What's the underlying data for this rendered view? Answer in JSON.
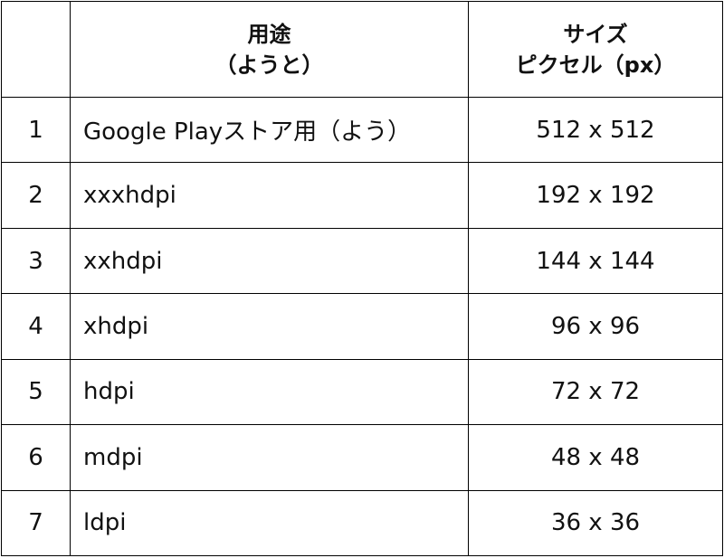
{
  "header": {
    "number": "",
    "use_line1": "用途",
    "use_line2": "（ようと）",
    "size_line1": "サイズ",
    "size_line2": "ピクセル（px）"
  },
  "rows": [
    {
      "number": "1",
      "use": "Google Playストア用（よう）",
      "size": "512 x 512"
    },
    {
      "number": "2",
      "use": "xxxhdpi",
      "size": "192 x 192"
    },
    {
      "number": "3",
      "use": "xxhdpi",
      "size": "144 x 144"
    },
    {
      "number": "4",
      "use": "xhdpi",
      "size": "96 x 96"
    },
    {
      "number": "5",
      "use": "hdpi",
      "size": "72 x 72"
    },
    {
      "number": "6",
      "use": "mdpi",
      "size": "48 x 48"
    },
    {
      "number": "7",
      "use": "ldpi",
      "size": "36 x 36"
    }
  ]
}
